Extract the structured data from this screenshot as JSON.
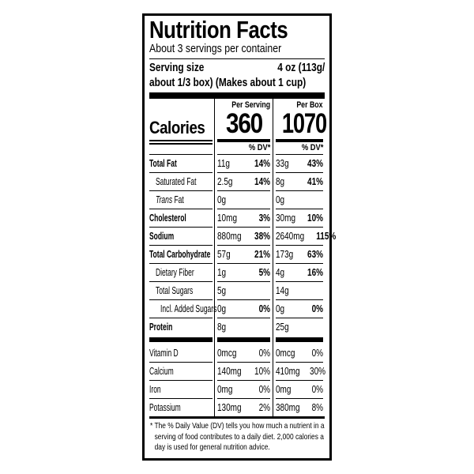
{
  "label": {
    "title": "Nutrition Facts",
    "servings_per_container": "About 3 servings per container",
    "serving_size_label": "Serving size",
    "serving_size_value_line1": "4 oz (113g/",
    "serving_size_value_line2": "about 1/3 box) (Makes about 1 cup)",
    "calories": {
      "label": "Calories",
      "dv_header": "% DV*",
      "columns": [
        {
          "header": "Per Serving",
          "value": "360"
        },
        {
          "header": "Per Box",
          "value": "1070"
        }
      ]
    },
    "nutrients": [
      {
        "name": "Total Fat",
        "bold": true,
        "indent": 0,
        "serving_amount": "11g",
        "serving_dv": "14%",
        "box_amount": "33g",
        "box_dv": "43%"
      },
      {
        "name": "Saturated Fat",
        "bold": false,
        "indent": 1,
        "serving_amount": "2.5g",
        "serving_dv": "14%",
        "box_amount": "8g",
        "box_dv": "41%"
      },
      {
        "name_italic": "Trans",
        "name": "Fat",
        "bold": false,
        "indent": 1,
        "serving_amount": "0g",
        "serving_dv": "",
        "box_amount": "0g",
        "box_dv": ""
      },
      {
        "name": "Cholesterol",
        "bold": true,
        "indent": 0,
        "serving_amount": "10mg",
        "serving_dv": "3%",
        "box_amount": "30mg",
        "box_dv": "10%"
      },
      {
        "name": "Sodium",
        "bold": true,
        "indent": 0,
        "serving_amount": "880mg",
        "serving_dv": "38%",
        "box_amount": "2640mg",
        "box_dv": "115%"
      },
      {
        "name": "Total Carbohydrate",
        "bold": true,
        "indent": 0,
        "serving_amount": "57g",
        "serving_dv": "21%",
        "box_amount": "173g",
        "box_dv": "63%"
      },
      {
        "name": "Dietary Fiber",
        "bold": false,
        "indent": 1,
        "serving_amount": "1g",
        "serving_dv": "5%",
        "box_amount": "4g",
        "box_dv": "16%"
      },
      {
        "name": "Total Sugars",
        "bold": false,
        "indent": 1,
        "serving_amount": "5g",
        "serving_dv": "",
        "box_amount": "14g",
        "box_dv": ""
      },
      {
        "name": "Incl. Added Sugars",
        "bold": false,
        "indent": 2,
        "serving_amount": "0g",
        "serving_dv": "0%",
        "box_amount": "0g",
        "box_dv": "0%"
      },
      {
        "name": "Protein",
        "bold": true,
        "indent": 0,
        "serving_amount": "8g",
        "serving_dv": "",
        "box_amount": "25g",
        "box_dv": ""
      }
    ],
    "vitamins": [
      {
        "name": "Vitamin D",
        "serving_amount": "0mcg",
        "serving_dv": "0%",
        "box_amount": "0mcg",
        "box_dv": "0%"
      },
      {
        "name": "Calcium",
        "serving_amount": "140mg",
        "serving_dv": "10%",
        "box_amount": "410mg",
        "box_dv": "30%"
      },
      {
        "name": "Iron",
        "serving_amount": "0mg",
        "serving_dv": "0%",
        "box_amount": "0mg",
        "box_dv": "0%"
      },
      {
        "name": "Potassium",
        "serving_amount": "130mg",
        "serving_dv": "2%",
        "box_amount": "380mg",
        "box_dv": "8%"
      }
    ],
    "footnote": "* The % Daily Value (DV) tells you how much a nutrient in a serving of food contributes to a daily diet. 2,000 calories a day is used for general nutrition advice.",
    "colors": {
      "text": "#000000",
      "background": "#ffffff"
    }
  }
}
